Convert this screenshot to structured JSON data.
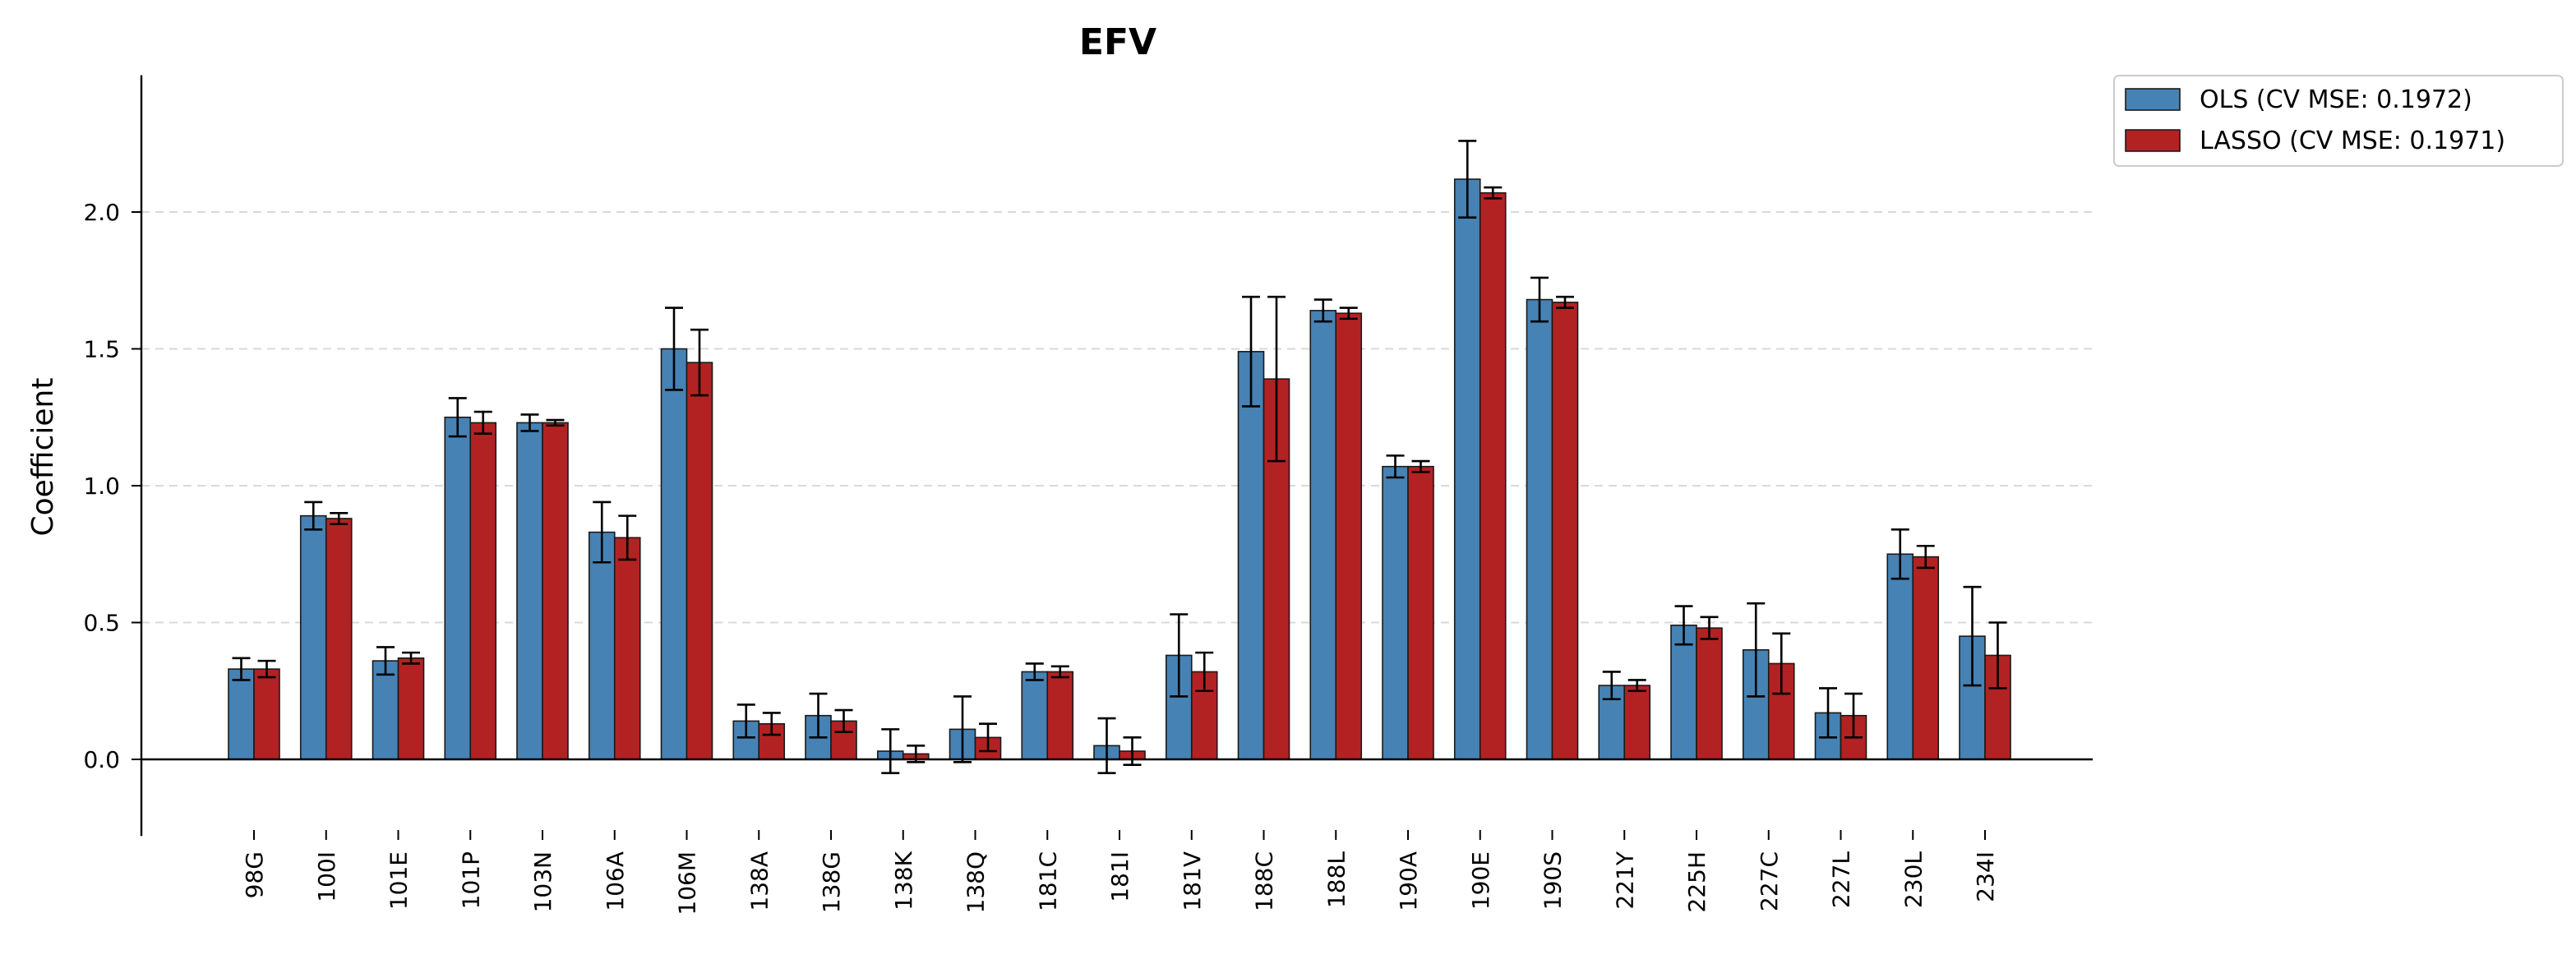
{
  "chart_data": {
    "type": "bar",
    "title": "EFV",
    "xlabel": "",
    "ylabel": "Coefficient",
    "ylim": [
      -0.28,
      2.5
    ],
    "yticks": [
      "0.0",
      "0.5",
      "1.0",
      "1.5",
      "2.0"
    ],
    "grid": "horizontal dashed",
    "legend_position": "outside top-right",
    "categories": [
      "98G",
      "100I",
      "101E",
      "101P",
      "103N",
      "106A",
      "106M",
      "138A",
      "138G",
      "138K",
      "138Q",
      "181C",
      "181I",
      "181V",
      "188C",
      "188L",
      "190A",
      "190E",
      "190S",
      "221Y",
      "225H",
      "227C",
      "227L",
      "230L",
      "234I"
    ],
    "series": [
      {
        "name": "OLS (CV MSE: 0.1972)",
        "color": "#4682b4",
        "values": [
          0.33,
          0.89,
          0.36,
          1.25,
          1.23,
          0.83,
          1.5,
          0.14,
          0.16,
          0.03,
          0.11,
          0.32,
          0.05,
          0.38,
          1.49,
          1.64,
          1.07,
          2.12,
          1.68,
          0.27,
          0.49,
          0.4,
          0.17,
          0.75,
          0.45
        ],
        "error": [
          0.04,
          0.05,
          0.05,
          0.07,
          0.03,
          0.11,
          0.15,
          0.06,
          0.08,
          0.08,
          0.12,
          0.03,
          0.1,
          0.15,
          0.2,
          0.04,
          0.04,
          0.14,
          0.08,
          0.05,
          0.07,
          0.17,
          0.09,
          0.09,
          0.18
        ]
      },
      {
        "name": "LASSO (CV MSE: 0.1971)",
        "color": "#b22222",
        "values": [
          0.33,
          0.88,
          0.37,
          1.23,
          1.23,
          0.81,
          1.45,
          0.13,
          0.14,
          0.02,
          0.08,
          0.32,
          0.03,
          0.32,
          1.39,
          1.63,
          1.07,
          2.07,
          1.67,
          0.27,
          0.48,
          0.35,
          0.16,
          0.74,
          0.38
        ],
        "error": [
          0.03,
          0.02,
          0.02,
          0.04,
          0.01,
          0.08,
          0.12,
          0.04,
          0.04,
          0.03,
          0.05,
          0.02,
          0.05,
          0.07,
          0.3,
          0.02,
          0.02,
          0.02,
          0.02,
          0.02,
          0.04,
          0.11,
          0.08,
          0.04,
          0.12
        ]
      }
    ]
  }
}
